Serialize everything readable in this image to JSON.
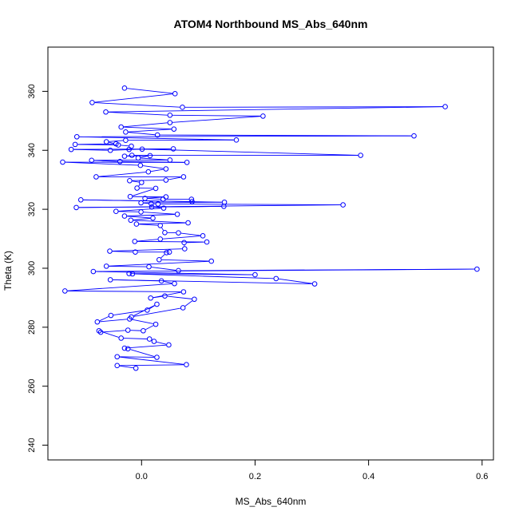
{
  "chart_data": {
    "type": "line",
    "title": "ATOM4 Northbound MS_Abs_640nm",
    "xlabel": "MS_Abs_640nm",
    "ylabel": "Theta (K)",
    "xlim": [
      -0.165,
      0.62
    ],
    "ylim": [
      235,
      375
    ],
    "x_ticks": [
      0.0,
      0.2,
      0.4,
      0.6
    ],
    "x_tick_labels": [
      "0.0",
      "0.2",
      "0.4",
      "0.6"
    ],
    "y_ticks": [
      240,
      260,
      280,
      300,
      320,
      340,
      360
    ],
    "y_tick_labels": [
      "240",
      "260",
      "280",
      "300",
      "320",
      "340",
      "360"
    ],
    "grid": false,
    "legend": "none",
    "marker": "open-circle",
    "series": [
      {
        "color": "#0000ff",
        "points": [
          [
            -0.03,
            361.1
          ],
          [
            0.059,
            359.2
          ],
          [
            -0.087,
            356.2
          ],
          [
            0.072,
            354.6
          ],
          [
            0.535,
            354.8
          ],
          [
            -0.063,
            353.0
          ],
          [
            0.05,
            351.9
          ],
          [
            0.214,
            351.6
          ],
          [
            0.05,
            349.4
          ],
          [
            -0.036,
            347.9
          ],
          [
            0.057,
            347.2
          ],
          [
            -0.028,
            346.2
          ],
          [
            0.028,
            345.2
          ],
          [
            0.48,
            344.9
          ],
          [
            -0.114,
            344.6
          ],
          [
            0.167,
            343.5
          ],
          [
            -0.028,
            343.4
          ],
          [
            -0.062,
            342.9
          ],
          [
            -0.045,
            342.2
          ],
          [
            -0.117,
            342.0
          ],
          [
            -0.041,
            341.8
          ],
          [
            -0.018,
            341.4
          ],
          [
            -0.022,
            340.3
          ],
          [
            0.056,
            340.5
          ],
          [
            -0.124,
            340.3
          ],
          [
            -0.055,
            340.0
          ],
          [
            0.001,
            340.4
          ],
          [
            0.386,
            338.3
          ],
          [
            -0.017,
            338.3
          ],
          [
            -0.03,
            338.0
          ],
          [
            0.015,
            338.2
          ],
          [
            -0.006,
            337.4
          ],
          [
            0.05,
            336.7
          ],
          [
            -0.088,
            336.6
          ],
          [
            -0.038,
            336.2
          ],
          [
            0.08,
            335.9
          ],
          [
            -0.139,
            336.0
          ],
          [
            -0.002,
            334.9
          ],
          [
            0.043,
            333.7
          ],
          [
            0.012,
            332.7
          ],
          [
            -0.08,
            331.0
          ],
          [
            0.074,
            331.0
          ],
          [
            0.043,
            329.9
          ],
          [
            -0.021,
            329.7
          ],
          [
            0.0,
            329.1
          ],
          [
            -0.008,
            327.2
          ],
          [
            0.025,
            327.1
          ],
          [
            -0.02,
            324.3
          ],
          [
            0.043,
            324.2
          ],
          [
            0.006,
            323.7
          ],
          [
            0.038,
            323.4
          ],
          [
            0.088,
            323.4
          ],
          [
            0.089,
            322.6
          ],
          [
            -0.107,
            323.2
          ],
          [
            0.146,
            322.4
          ],
          [
            -0.001,
            322.2
          ],
          [
            0.017,
            321.9
          ],
          [
            0.029,
            321.8
          ],
          [
            0.355,
            321.5
          ],
          [
            -0.115,
            320.6
          ],
          [
            0.145,
            321.0
          ],
          [
            0.018,
            320.8
          ],
          [
            0.039,
            320.4
          ],
          [
            -0.045,
            319.3
          ],
          [
            -0.001,
            319.1
          ],
          [
            0.063,
            318.3
          ],
          [
            -0.03,
            317.7
          ],
          [
            0.02,
            317.0
          ],
          [
            -0.019,
            316.3
          ],
          [
            0.082,
            315.4
          ],
          [
            -0.009,
            315.0
          ],
          [
            0.033,
            314.5
          ],
          [
            0.041,
            312.1
          ],
          [
            0.065,
            312.0
          ],
          [
            0.108,
            311.0
          ],
          [
            0.033,
            309.9
          ],
          [
            -0.012,
            309.1
          ],
          [
            0.115,
            308.9
          ],
          [
            0.075,
            308.7
          ],
          [
            0.076,
            306.6
          ],
          [
            -0.056,
            305.8
          ],
          [
            -0.011,
            305.5
          ],
          [
            0.049,
            305.5
          ],
          [
            0.044,
            305.3
          ],
          [
            0.031,
            302.9
          ],
          [
            0.123,
            302.4
          ],
          [
            -0.062,
            300.7
          ],
          [
            0.013,
            300.5
          ],
          [
            0.065,
            299.2
          ],
          [
            0.591,
            299.7
          ],
          [
            -0.085,
            298.9
          ],
          [
            0.2,
            297.8
          ],
          [
            -0.022,
            298.2
          ],
          [
            -0.016,
            298.1
          ],
          [
            0.237,
            296.5
          ],
          [
            0.305,
            294.7
          ],
          [
            -0.055,
            296.1
          ],
          [
            0.035,
            295.7
          ],
          [
            0.058,
            294.8
          ],
          [
            -0.135,
            292.3
          ],
          [
            0.074,
            292.0
          ],
          [
            0.016,
            289.9
          ],
          [
            0.041,
            290.6
          ],
          [
            0.093,
            289.5
          ],
          [
            0.073,
            286.6
          ],
          [
            -0.018,
            283.5
          ],
          [
            0.027,
            287.8
          ],
          [
            0.01,
            285.8
          ],
          [
            -0.054,
            284.0
          ],
          [
            -0.078,
            281.8
          ],
          [
            -0.021,
            282.8
          ],
          [
            0.025,
            281.0
          ],
          [
            0.003,
            278.8
          ],
          [
            -0.024,
            279.0
          ],
          [
            -0.072,
            278.3
          ],
          [
            -0.075,
            278.8
          ],
          [
            -0.036,
            276.3
          ],
          [
            0.014,
            276.0
          ],
          [
            0.022,
            275.2
          ],
          [
            0.048,
            274.0
          ],
          [
            -0.03,
            272.9
          ],
          [
            -0.024,
            272.7
          ],
          [
            0.027,
            269.8
          ],
          [
            -0.043,
            270.0
          ],
          [
            0.079,
            267.3
          ],
          [
            -0.043,
            267.0
          ],
          [
            -0.01,
            266.1
          ]
        ]
      }
    ]
  }
}
